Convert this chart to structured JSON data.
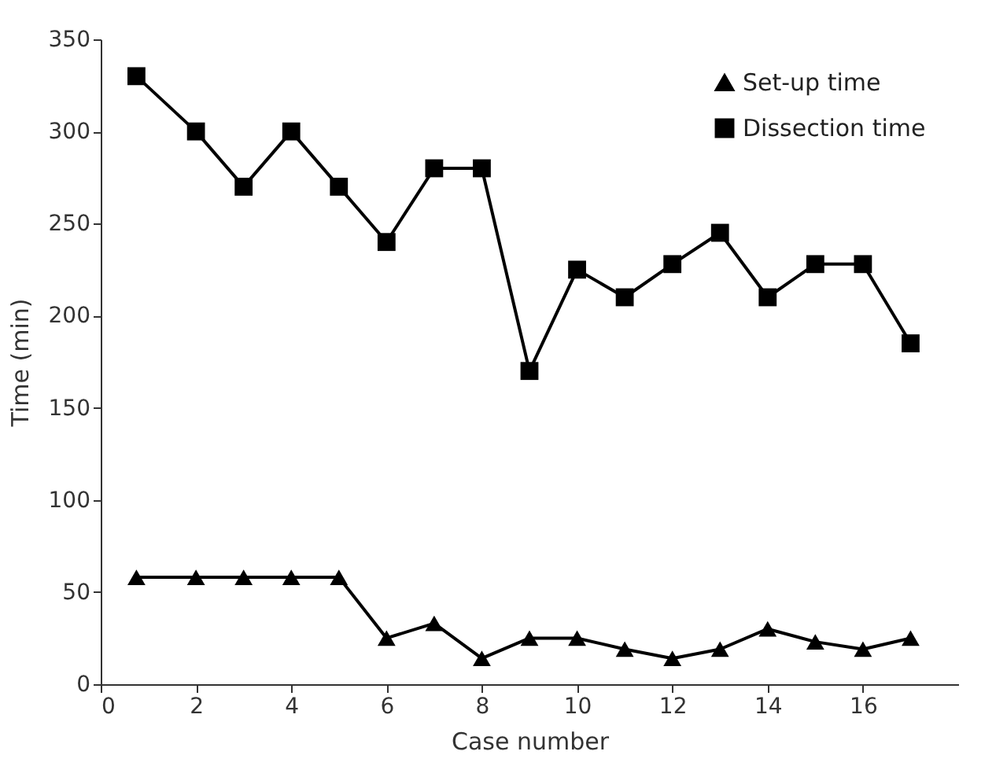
{
  "chart_data": {
    "type": "line",
    "xlabel": "Case number",
    "ylabel": "Time (min)",
    "xlim": [
      0,
      18
    ],
    "xticks": [
      0,
      2,
      4,
      6,
      8,
      10,
      12,
      14,
      16
    ],
    "ylim": [
      0,
      350
    ],
    "yticks": [
      0,
      50,
      100,
      150,
      200,
      250,
      300,
      350
    ],
    "x": [
      0.75,
      2,
      3,
      4,
      5,
      6,
      7,
      8,
      9,
      10,
      11,
      12,
      13,
      14,
      15,
      16,
      17
    ],
    "grid": false,
    "legend": "top right",
    "line_style": "solid",
    "series": [
      {
        "name": "Set-up time",
        "color": "#000000",
        "marker": "triangle",
        "values": [
          58,
          58,
          58,
          58,
          58,
          25,
          33,
          14,
          25,
          25,
          19,
          14,
          19,
          30,
          23,
          19,
          25
        ]
      },
      {
        "name": "Dissection time",
        "color": "#000000",
        "marker": "square",
        "values": [
          330,
          300,
          270,
          300,
          270,
          240,
          280,
          280,
          170,
          225,
          210,
          228,
          245,
          210,
          228,
          228,
          185
        ]
      }
    ]
  }
}
